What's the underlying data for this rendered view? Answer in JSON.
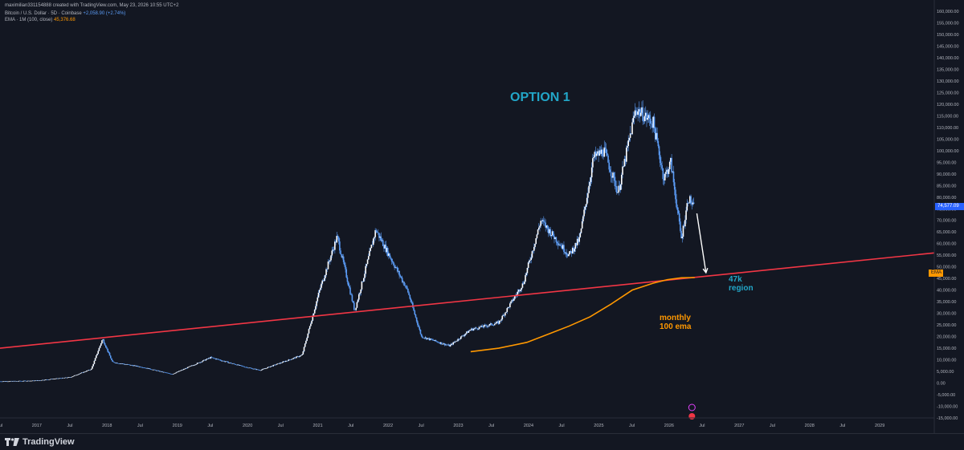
{
  "header": {
    "author_line": "maximilian331154888 created with TradingView.com, May 23, 2026 10:55 UTC+2",
    "symbol_line": "Bitcoin / U.S. Dollar · 5D · Coinbase",
    "symbol_change": "+2,058.90 (+2.74%)",
    "ema_line": "EMA · 1M (100, close)",
    "ema_value": "45,376.68"
  },
  "price_axis": {
    "labels": [
      "160,000.00",
      "155,000.00",
      "150,000.00",
      "145,000.00",
      "140,000.00",
      "135,000.00",
      "130,000.00",
      "125,000.00",
      "120,000.00",
      "115,000.00",
      "110,000.00",
      "105,000.00",
      "100,000.00",
      "95,000.00",
      "90,000.00",
      "85,000.00",
      "80,000.00",
      "75,000.00",
      "70,000.00",
      "65,000.00",
      "60,000.00",
      "55,000.00",
      "50,000.00",
      "45,000.00",
      "40,000.00",
      "35,000.00",
      "30,000.00",
      "25,000.00",
      "20,000.00",
      "15,000.00",
      "10,000.00",
      "5,000.00",
      "0.00",
      "-5,000.00",
      "-10,000.00",
      "-15,000.00"
    ],
    "current_price": "74,577.09",
    "ema_tag": "EMA"
  },
  "time_axis": {
    "labels": [
      "Jul",
      "2017",
      "Jul",
      "2018",
      "Jul",
      "2019",
      "Jul",
      "2020",
      "Jul",
      "2021",
      "Jul",
      "2022",
      "Jul",
      "2023",
      "Jul",
      "2024",
      "Jul",
      "2025",
      "Jul",
      "2026",
      "Jul",
      "2027",
      "Jul",
      "2028",
      "Jul",
      "2029"
    ]
  },
  "annotations": {
    "option": "OPTION 1",
    "target": "47k\nregion",
    "ema_note": "monthly\n100 ema"
  },
  "footer": {
    "brand": "TradingView"
  },
  "colors": {
    "background": "#131722",
    "candle": "#5b9cf6",
    "trendline": "#f23645",
    "ema": "#ff9800",
    "annotation_teal": "#22a6c8",
    "price_tag": "#2962ff"
  },
  "chart_data": {
    "type": "line",
    "title": "",
    "x_range": [
      2016.5,
      2029.8
    ],
    "ylim": [
      -15000,
      160000
    ],
    "grid": false,
    "price_series": {
      "x": [
        2016.5,
        2017.0,
        2017.5,
        2017.8,
        2017.96,
        2018.1,
        2018.5,
        2018.95,
        2019.5,
        2019.95,
        2020.2,
        2020.8,
        2021.05,
        2021.3,
        2021.55,
        2021.85,
        2022.3,
        2022.5,
        2022.9,
        2023.2,
        2023.6,
        2023.95,
        2024.2,
        2024.6,
        2024.75,
        2024.95,
        2025.1,
        2025.3,
        2025.55,
        2025.8,
        2025.95,
        2026.05,
        2026.2,
        2026.3,
        2026.39
      ],
      "y": [
        700,
        1000,
        2500,
        6000,
        19000,
        9000,
        7000,
        3800,
        11000,
        7200,
        5500,
        12000,
        40000,
        63000,
        31000,
        66000,
        40000,
        20000,
        16000,
        23000,
        26000,
        43000,
        70000,
        55000,
        62000,
        97000,
        100000,
        82000,
        118000,
        112000,
        88000,
        95000,
        62000,
        80000,
        74577
      ]
    },
    "ema_series": {
      "x": [
        2023.2,
        2023.6,
        2024.0,
        2024.3,
        2024.6,
        2024.9,
        2025.2,
        2025.5,
        2025.8,
        2026.0,
        2026.2,
        2026.39
      ],
      "y": [
        13500,
        15000,
        17500,
        21000,
        24500,
        28500,
        34000,
        40000,
        43000,
        44500,
        45300,
        45400
      ]
    },
    "trendline": {
      "x": [
        2016.5,
        2029.8
      ],
      "y": [
        15000,
        56000
      ]
    },
    "arrow": {
      "from": [
        2026.42,
        73000
      ],
      "to": [
        2026.55,
        47500
      ]
    }
  }
}
